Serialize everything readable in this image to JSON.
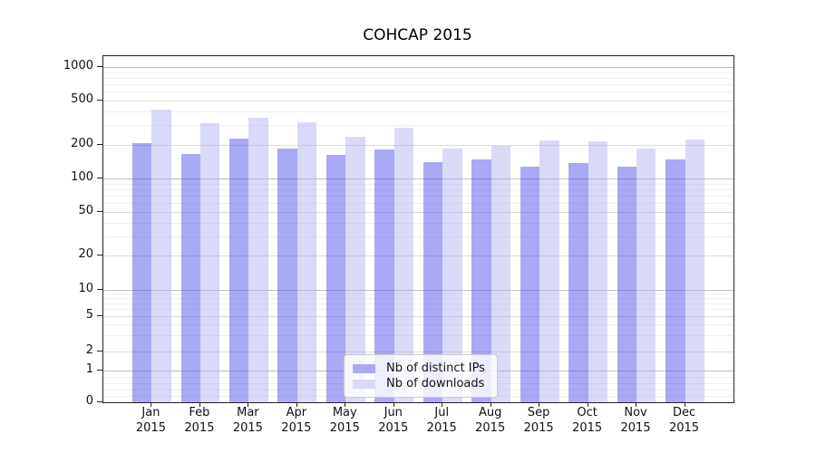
{
  "chart_data": {
    "type": "bar",
    "title": "COHCAP 2015",
    "categories": [
      "Jan 2015",
      "Feb 2015",
      "Mar 2015",
      "Apr 2015",
      "May 2015",
      "Jun 2015",
      "Jul 2015",
      "Aug 2015",
      "Sep 2015",
      "Oct 2015",
      "Nov 2015",
      "Dec 2015"
    ],
    "series": [
      {
        "name": "Nb of distinct IPs",
        "color": "#a9a9f6",
        "values": [
          208,
          166,
          229,
          186,
          164,
          184,
          139,
          148,
          128,
          137,
          127,
          148
        ]
      },
      {
        "name": "Nb of downloads",
        "color": "#d9d9f8",
        "values": [
          420,
          313,
          349,
          320,
          236,
          286,
          185,
          196,
          222,
          216,
          186,
          225
        ]
      }
    ],
    "yscale": "symlog",
    "y_tick_labels": [
      "1000",
      "500",
      "200",
      "100",
      "50",
      "20",
      "10",
      "5",
      "2",
      "1",
      "0"
    ],
    "ylim": [
      0,
      1260
    ],
    "grid": true,
    "legend_position": "lower center",
    "xlabel": "",
    "ylabel": ""
  }
}
